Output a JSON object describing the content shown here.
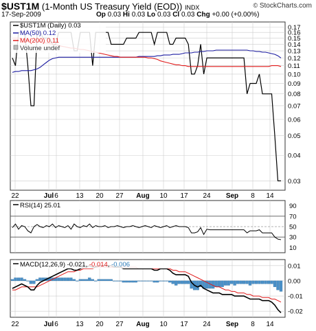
{
  "header": {
    "symbol": "$UST1M",
    "description": "(1-Month US Treasury Yield (EOD))",
    "exchange": "INDX",
    "date": "17-Sep-2009",
    "open_label": "Op",
    "open": "0.03",
    "high_label": "Hi",
    "high": "0.03",
    "low_label": "Lo",
    "low": "0.03",
    "close_label": "Cl",
    "close": "0.03",
    "change_label": "Chg",
    "change": "+0.00 (+0.00%)",
    "brand": "StockCharts.com",
    "copyright": "©"
  },
  "colors": {
    "price": "#000000",
    "ma50": "#1a1aa0",
    "ma200": "#e01818",
    "macd": "#000000",
    "signal": "#e01818",
    "histogram": "#4a90c8",
    "hist_value": "#2a7ab8",
    "grid": "#cccccc",
    "level": "#555555"
  },
  "chart_data": [
    {
      "type": "line",
      "panel": "price",
      "legend": [
        {
          "label": "$UST1M (Daily) 0.03"
        },
        {
          "label": "MA(50) 0.12"
        },
        {
          "label": "MA(200) 0.11"
        },
        {
          "label": "Volume undef"
        }
      ],
      "y_scale": "log",
      "ylim": [
        0.027,
        0.18
      ],
      "y_ticks": [
        "0.17",
        "0.16",
        "0.15",
        "0.14",
        "0.13",
        "0.12",
        "0.11",
        "0.10",
        "0.09",
        "0.08",
        "0.07",
        "0.06",
        "0.05",
        "0.04",
        "0.03"
      ],
      "y_tick_values": [
        0.17,
        0.16,
        0.15,
        0.14,
        0.13,
        0.12,
        0.11,
        0.1,
        0.09,
        0.08,
        0.07,
        0.06,
        0.05,
        0.04,
        0.03
      ],
      "x_labels": [
        "22",
        "Jul",
        "6",
        "13",
        "20",
        "27",
        "Aug",
        "10",
        "17",
        "24",
        "Sep",
        "8",
        "14"
      ],
      "series": [
        {
          "name": "$UST1M (Daily)",
          "values": [
            0.12,
            0.11,
            0.16,
            0.16,
            0.16,
            0.11,
            0.07,
            0.07,
            0.16,
            0.16,
            0.15,
            0.15,
            0.15,
            0.14,
            0.14,
            0.16,
            0.16,
            0.16,
            0.16,
            0.16,
            0.13,
            0.13,
            0.16,
            0.16,
            0.16,
            0.16,
            0.11,
            0.16,
            0.16,
            0.16,
            0.16,
            0.16,
            0.14,
            0.14,
            0.14,
            0.14,
            0.14,
            0.15,
            0.15,
            0.15,
            0.15,
            0.16,
            0.16,
            0.16,
            0.16,
            0.16,
            0.14,
            0.16,
            0.16,
            0.16,
            0.16,
            0.14,
            0.14,
            0.15,
            0.15,
            0.15,
            0.15,
            0.14,
            0.1,
            0.1,
            0.11,
            0.14,
            0.1,
            0.12,
            0.12,
            0.12,
            0.12,
            0.12,
            0.12,
            0.12,
            0.12,
            0.12,
            0.12,
            0.12,
            0.12,
            0.12,
            0.08,
            0.09,
            0.09,
            0.09,
            0.1,
            0.08,
            0.08,
            0.08,
            0.08,
            0.05,
            0.03,
            0.03
          ]
        },
        {
          "name": "MA(50)",
          "values": [
            0.102,
            0.103,
            0.103,
            0.104,
            0.104,
            0.104,
            0.104,
            0.105,
            0.106,
            0.108,
            0.111,
            0.114,
            0.117,
            0.119,
            0.12,
            0.121,
            0.121,
            0.121,
            0.121,
            0.121,
            0.121,
            0.121,
            0.121,
            0.121,
            0.121,
            0.121,
            0.121,
            0.121,
            0.121,
            0.121,
            0.121,
            0.121,
            0.121,
            0.121,
            0.121,
            0.121,
            0.121,
            0.121,
            0.121,
            0.121,
            0.121,
            0.122,
            0.122,
            0.122,
            0.122,
            0.122,
            0.122,
            0.123,
            0.123,
            0.124,
            0.124,
            0.124,
            0.125,
            0.125,
            0.125,
            0.126,
            0.127,
            0.127,
            0.127,
            0.128,
            0.128,
            0.129,
            0.129,
            0.13,
            0.13,
            0.13,
            0.131,
            0.131,
            0.131,
            0.131,
            0.131,
            0.131,
            0.131,
            0.131,
            0.131,
            0.131,
            0.131,
            0.13,
            0.13,
            0.129,
            0.129,
            0.128,
            0.128,
            0.127,
            0.126,
            0.125,
            0.123,
            0.12
          ]
        },
        {
          "name": "MA(200)",
          "values": [
            0.15,
            0.15,
            0.15,
            0.149,
            0.148,
            0.148,
            0.147,
            0.146,
            0.145,
            0.144,
            0.143,
            0.142,
            0.141,
            0.14,
            0.139,
            0.138,
            0.137,
            0.136,
            0.135,
            0.134,
            0.134,
            0.133,
            0.132,
            0.132,
            0.131,
            0.13,
            0.129,
            0.128,
            0.127,
            0.126,
            0.125,
            0.124,
            0.123,
            0.122,
            0.122,
            0.121,
            0.121,
            0.121,
            0.121,
            0.121,
            0.121,
            0.121,
            0.121,
            0.121,
            0.12,
            0.12,
            0.119,
            0.118,
            0.116,
            0.115,
            0.114,
            0.113,
            0.112,
            0.111,
            0.111,
            0.11,
            0.11,
            0.109,
            0.109,
            0.109,
            0.109,
            0.109,
            0.109,
            0.109,
            0.109,
            0.109,
            0.109,
            0.109,
            0.109,
            0.109,
            0.109,
            0.109,
            0.109,
            0.109,
            0.109,
            0.109,
            0.109,
            0.109,
            0.109,
            0.109,
            0.109,
            0.109,
            0.109,
            0.109,
            0.11,
            0.11,
            0.11,
            0.109
          ]
        }
      ]
    },
    {
      "type": "line",
      "panel": "rsi",
      "legend": [
        {
          "label": "RSI(14) 25.01"
        }
      ],
      "ylim": [
        0,
        100
      ],
      "y_ticks": [
        "90",
        "70",
        "50",
        "30",
        "10"
      ],
      "y_tick_values": [
        90,
        70,
        50,
        30,
        10
      ],
      "levels": [
        70,
        30
      ],
      "midline": 50,
      "series": [
        {
          "name": "RSI(14)",
          "values": [
            48,
            55,
            45,
            52,
            50,
            42,
            38,
            50,
            54,
            50,
            48,
            52,
            50,
            55,
            48,
            52,
            50,
            48,
            52,
            45,
            55,
            50,
            48,
            52,
            50,
            55,
            48,
            52,
            50,
            50,
            52,
            48,
            50,
            50,
            52,
            50,
            48,
            50,
            50,
            52,
            50,
            48,
            50,
            52,
            50,
            48,
            52,
            50,
            48,
            50,
            52,
            48,
            50,
            52,
            50,
            50,
            50,
            48,
            38,
            38,
            40,
            48,
            35,
            45,
            44,
            44,
            44,
            44,
            44,
            44,
            44,
            44,
            44,
            44,
            44,
            44,
            38,
            42,
            42,
            42,
            44,
            38,
            38,
            38,
            38,
            30,
            26,
            25
          ]
        }
      ]
    },
    {
      "type": "line",
      "panel": "macd",
      "legend": [
        {
          "label": "MACD(12,26,9)",
          "value": "-0.021"
        },
        {
          "label": "signal",
          "value": "-0.014"
        },
        {
          "label": "histogram",
          "value": "-0.006"
        }
      ],
      "ylim": [
        -0.024,
        0.014
      ],
      "y_ticks": [
        "0.01",
        "0.00",
        "-0.01",
        "-0.02"
      ],
      "y_tick_values": [
        0.01,
        0.0,
        -0.01,
        -0.02
      ],
      "series": [
        {
          "name": "MACD",
          "values": [
            -0.005,
            -0.004,
            -0.003,
            -0.002,
            -0.003,
            -0.004,
            -0.006,
            -0.006,
            -0.003,
            -0.001,
            0.0,
            0.001,
            0.002,
            0.003,
            0.004,
            0.005,
            0.006,
            0.007,
            0.008,
            0.008,
            0.007,
            0.007,
            0.008,
            0.009,
            0.009,
            0.01,
            0.009,
            0.009,
            0.01,
            0.01,
            0.01,
            0.01,
            0.01,
            0.009,
            0.009,
            0.009,
            0.008,
            0.008,
            0.008,
            0.008,
            0.008,
            0.008,
            0.008,
            0.008,
            0.008,
            0.008,
            0.007,
            0.007,
            0.008,
            0.008,
            0.008,
            0.007,
            0.005,
            0.004,
            0.004,
            0.004,
            0.004,
            0.003,
            -0.001,
            -0.003,
            -0.004,
            -0.003,
            -0.005,
            -0.006,
            -0.007,
            -0.008,
            -0.008,
            -0.008,
            -0.009,
            -0.009,
            -0.009,
            -0.009,
            -0.01,
            -0.01,
            -0.01,
            -0.01,
            -0.011,
            -0.012,
            -0.012,
            -0.012,
            -0.012,
            -0.013,
            -0.013,
            -0.013,
            -0.014,
            -0.016,
            -0.019,
            -0.021
          ]
        },
        {
          "name": "Signal",
          "values": [
            -0.006,
            -0.006,
            -0.005,
            -0.004,
            -0.004,
            -0.004,
            -0.004,
            -0.004,
            -0.004,
            -0.003,
            -0.002,
            -0.001,
            0.0,
            0.001,
            0.002,
            0.003,
            0.004,
            0.005,
            0.006,
            0.006,
            0.006,
            0.007,
            0.007,
            0.008,
            0.008,
            0.008,
            0.008,
            0.009,
            0.009,
            0.009,
            0.009,
            0.009,
            0.009,
            0.009,
            0.009,
            0.009,
            0.009,
            0.009,
            0.009,
            0.009,
            0.009,
            0.008,
            0.008,
            0.008,
            0.008,
            0.008,
            0.008,
            0.008,
            0.008,
            0.008,
            0.008,
            0.008,
            0.007,
            0.007,
            0.006,
            0.006,
            0.006,
            0.005,
            0.004,
            0.003,
            0.002,
            0.001,
            0.0,
            -0.001,
            -0.002,
            -0.003,
            -0.004,
            -0.004,
            -0.005,
            -0.006,
            -0.006,
            -0.007,
            -0.007,
            -0.008,
            -0.008,
            -0.008,
            -0.009,
            -0.009,
            -0.01,
            -0.01,
            -0.01,
            -0.011,
            -0.011,
            -0.011,
            -0.012,
            -0.012,
            -0.013,
            -0.014
          ]
        }
      ]
    }
  ]
}
